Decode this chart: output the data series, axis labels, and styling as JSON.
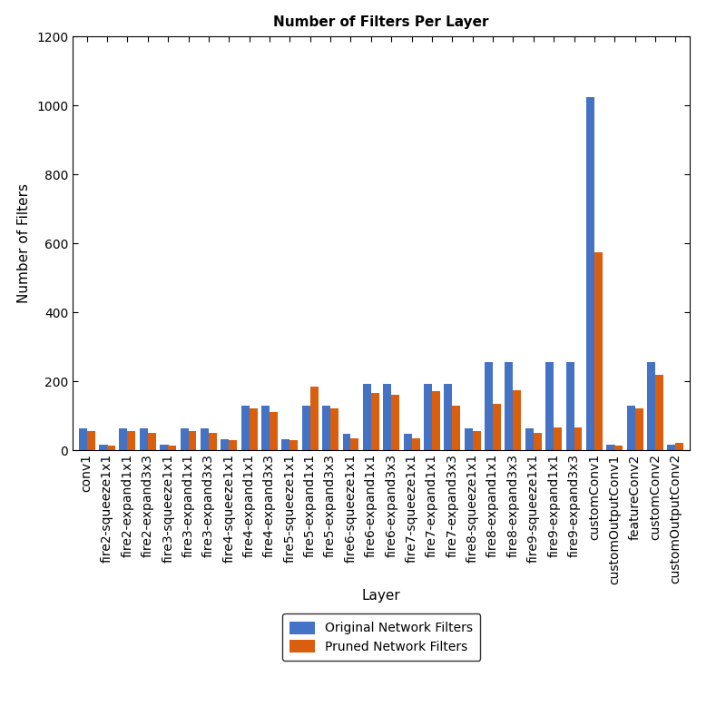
{
  "categories": [
    "conv1",
    "fire2-squeeze1x1",
    "fire2-expand1x1",
    "fire2-expand3x3",
    "fire3-squeeze1x1",
    "fire3-expand1x1",
    "fire3-expand3x3",
    "fire4-squeeze1x1",
    "fire4-expand1x1",
    "fire4-expand3x3",
    "fire5-squeeze1x1",
    "fire5-expand1x1",
    "fire5-expand3x3",
    "fire6-squeeze1x1",
    "fire6-expand1x1",
    "fire6-expand3x3",
    "fire7-squeeze1x1",
    "fire7-expand1x1",
    "fire7-expand3x3",
    "fire8-squeeze1x1",
    "fire8-expand1x1",
    "fire8-expand3x3",
    "fire9-squeeze1x1",
    "fire9-expand1x1",
    "fire9-expand3x3",
    "customConv1",
    "customOutputConv1",
    "featureConv2",
    "customConv2",
    "customOutputConv2"
  ],
  "original": [
    64,
    16,
    64,
    64,
    16,
    64,
    64,
    32,
    128,
    128,
    32,
    128,
    128,
    48,
    192,
    192,
    48,
    192,
    192,
    64,
    256,
    256,
    64,
    256,
    256,
    1024,
    16,
    128,
    256,
    16
  ],
  "pruned": [
    55,
    13,
    55,
    50,
    14,
    55,
    50,
    30,
    120,
    110,
    30,
    185,
    120,
    35,
    165,
    160,
    35,
    170,
    130,
    55,
    135,
    175,
    50,
    65,
    65,
    575,
    14,
    120,
    218,
    20
  ],
  "original_color": "#4472c4",
  "pruned_color": "#d95f0e",
  "title": "Number of Filters Per Layer",
  "xlabel": "Layer",
  "ylabel": "Number of Filters",
  "ylim": [
    0,
    1200
  ],
  "yticks": [
    0,
    200,
    400,
    600,
    800,
    1000,
    1200
  ],
  "legend_labels": [
    "Original Network Filters",
    "Pruned Network Filters"
  ],
  "title_fontsize": 11,
  "axis_label_fontsize": 11,
  "tick_fontsize": 10,
  "legend_fontsize": 10
}
